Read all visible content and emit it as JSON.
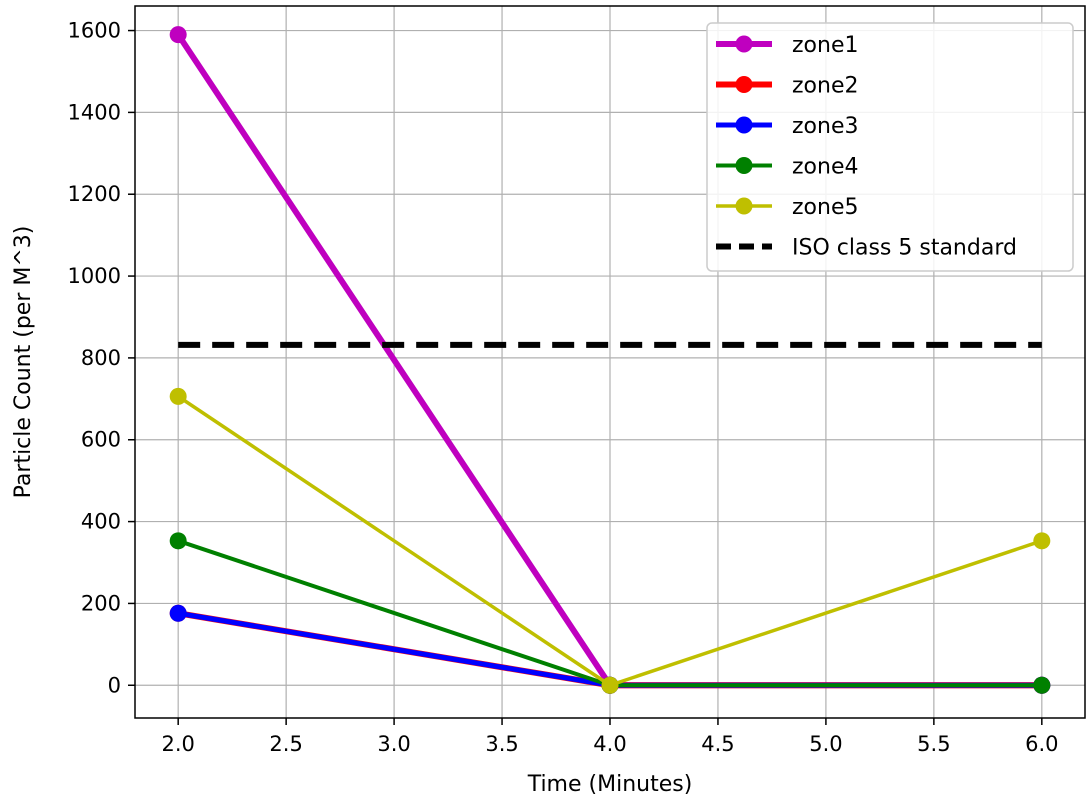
{
  "chart_data": {
    "type": "line",
    "x": [
      2.0,
      4.0,
      6.0
    ],
    "xlabel": "Time (Minutes)",
    "ylabel": "Particle Count (per M^3)",
    "xlim": [
      1.8,
      6.2
    ],
    "ylim": [
      -80,
      1660
    ],
    "xticks": [
      2.0,
      2.5,
      3.0,
      3.5,
      4.0,
      4.5,
      5.0,
      5.5,
      6.0
    ],
    "xtick_labels": [
      "2.0",
      "2.5",
      "3.0",
      "3.5",
      "4.0",
      "4.5",
      "5.0",
      "5.5",
      "6.0"
    ],
    "yticks": [
      0,
      200,
      400,
      600,
      800,
      1000,
      1200,
      1400,
      1600
    ],
    "ytick_labels": [
      "0",
      "200",
      "400",
      "600",
      "800",
      "1000",
      "1200",
      "1400",
      "1600"
    ],
    "grid": true,
    "legend_position": "top-right",
    "series": [
      {
        "name": "zone1",
        "values": [
          1590,
          0,
          0
        ],
        "color": "#bf00bf",
        "width": 6,
        "marker": true
      },
      {
        "name": "zone2",
        "values": [
          176,
          0,
          0
        ],
        "color": "#ff0000",
        "width": 6,
        "marker": true
      },
      {
        "name": "zone3",
        "values": [
          176,
          0,
          0
        ],
        "color": "#0000ff",
        "width": 5,
        "marker": true
      },
      {
        "name": "zone4",
        "values": [
          353,
          0,
          0
        ],
        "color": "#008000",
        "width": 4,
        "marker": true
      },
      {
        "name": "zone5",
        "values": [
          706,
          0,
          353
        ],
        "color": "#bfbf00",
        "width": 3.5,
        "marker": true
      },
      {
        "name": "ISO class 5 standard",
        "values": [
          832,
          832,
          832
        ],
        "color": "#000000",
        "width": 6,
        "marker": false,
        "dashed": true
      }
    ]
  }
}
